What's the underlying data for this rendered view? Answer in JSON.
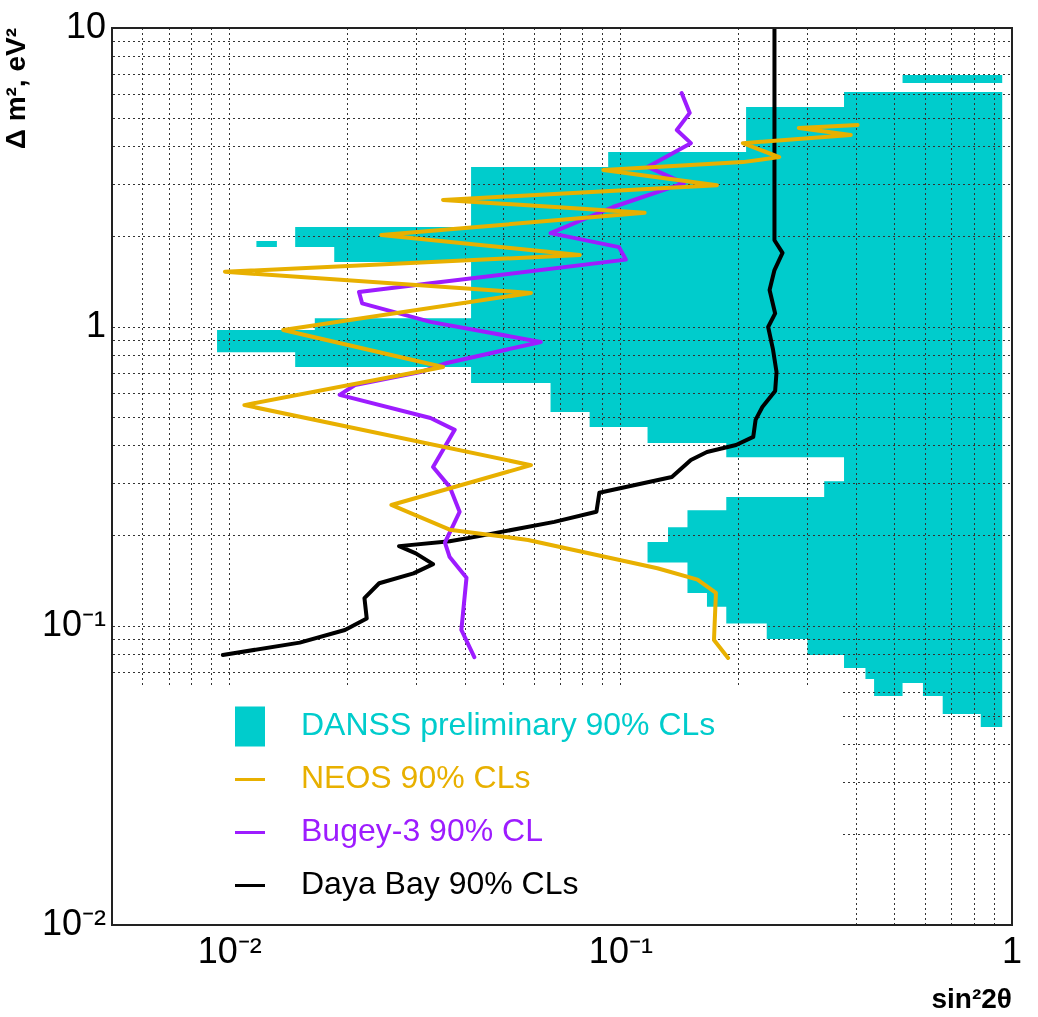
{
  "chart_data": {
    "type": "line",
    "xlabel": "sin²2θ",
    "ylabel": "Δ m², eV²",
    "log": "xy",
    "grid": true,
    "legend": "bottom left",
    "xlim": [
      0.005,
      1
    ],
    "ylim": [
      0.01,
      10
    ],
    "xticks": [
      {
        "value": 0.005,
        "label": null
      },
      {
        "value": 0.006,
        "label": null
      },
      {
        "value": 0.007,
        "label": null
      },
      {
        "value": 0.008,
        "label": null
      },
      {
        "value": 0.009,
        "label": null
      },
      {
        "value": 0.01,
        "label": "10⁻²"
      },
      {
        "value": 0.02,
        "label": null
      },
      {
        "value": 0.03,
        "label": null
      },
      {
        "value": 0.04,
        "label": null
      },
      {
        "value": 0.05,
        "label": null
      },
      {
        "value": 0.06,
        "label": null
      },
      {
        "value": 0.07,
        "label": null
      },
      {
        "value": 0.08,
        "label": null
      },
      {
        "value": 0.09,
        "label": null
      },
      {
        "value": 0.1,
        "label": "10⁻¹"
      },
      {
        "value": 0.2,
        "label": null
      },
      {
        "value": 0.3,
        "label": null
      },
      {
        "value": 0.4,
        "label": null
      },
      {
        "value": 0.5,
        "label": null
      },
      {
        "value": 0.6,
        "label": null
      },
      {
        "value": 0.7,
        "label": null
      },
      {
        "value": 0.8,
        "label": null
      },
      {
        "value": 0.9,
        "label": null
      },
      1
    ],
    "yticks": [
      {
        "value": 0.01,
        "label": "10⁻²"
      },
      {
        "value": 0.02,
        "label": null
      },
      {
        "value": 0.03,
        "label": null
      },
      {
        "value": 0.04,
        "label": null
      },
      {
        "value": 0.05,
        "label": null
      },
      {
        "value": 0.06,
        "label": null
      },
      {
        "value": 0.07,
        "label": null
      },
      {
        "value": 0.08,
        "label": null
      },
      {
        "value": 0.09,
        "label": null
      },
      {
        "value": 0.1,
        "label": "10⁻¹"
      },
      {
        "value": 0.2,
        "label": null
      },
      {
        "value": 0.3,
        "label": null
      },
      {
        "value": 0.4,
        "label": null
      },
      {
        "value": 0.5,
        "label": null
      },
      {
        "value": 0.6,
        "label": null
      },
      {
        "value": 0.7,
        "label": null
      },
      {
        "value": 0.8,
        "label": null
      },
      {
        "value": 0.9,
        "label": null
      },
      1,
      {
        "value": 2,
        "label": null
      },
      {
        "value": 3,
        "label": null
      },
      {
        "value": 4,
        "label": null
      },
      {
        "value": 5,
        "label": null
      },
      {
        "value": 6,
        "label": null
      },
      {
        "value": 7,
        "label": null
      },
      {
        "value": 8,
        "label": null
      },
      {
        "value": 9,
        "label": null
      },
      10
    ],
    "series": [
      {
        "name": "DANSS preliminary 90% CLs",
        "type": "area",
        "color": "#00cccc",
        "x": [
          0.0147,
          0.0414,
          0.0414,
          0.0928,
          0.0928,
          0.209,
          0.209,
          0.372,
          0.372,
          0.944,
          0.944,
          0.832,
          0.832,
          0.665,
          0.665,
          0.592,
          0.592,
          0.525,
          0.525,
          0.444,
          0.444,
          0.422,
          0.422,
          0.372,
          0.372,
          0.3,
          0.3,
          0.236,
          0.236,
          0.186,
          0.186,
          0.166,
          0.166,
          0.148,
          0.148,
          0.117,
          0.117,
          0.132,
          0.132,
          0.148,
          0.148,
          0.186,
          0.186,
          0.331,
          0.331,
          0.372,
          0.372,
          0.186,
          0.186,
          0.117,
          0.117,
          0.0832,
          0.0832,
          0.0661,
          0.0661,
          0.0414,
          0.0414,
          0.0147,
          0.0147,
          0.00928,
          0.00928,
          0.0165,
          0.0165,
          0.0414,
          0.0414,
          0.0185,
          0.0185,
          0.0147,
          null,
          0.0117,
          0.0132,
          0.0132,
          0.0117,
          null,
          0.525,
          0.944,
          0.944,
          0.525
        ],
        "values": [
          2.16,
          2.16,
          3.43,
          3.43,
          3.85,
          3.85,
          5.44,
          5.44,
          6.11,
          6.11,
          0.0459,
          0.0459,
          0.0508,
          0.0508,
          0.0583,
          0.0583,
          0.0645,
          0.0645,
          0.0583,
          0.0583,
          0.0665,
          0.0665,
          0.0724,
          0.0724,
          0.08,
          0.08,
          0.0905,
          0.0905,
          0.102,
          0.102,
          0.116,
          0.116,
          0.129,
          0.129,
          0.163,
          0.163,
          0.191,
          0.191,
          0.214,
          0.214,
          0.244,
          0.244,
          0.27,
          0.27,
          0.305,
          0.305,
          0.367,
          0.367,
          0.409,
          0.409,
          0.463,
          0.463,
          0.52,
          0.52,
          0.65,
          0.65,
          0.735,
          0.735,
          0.824,
          0.824,
          0.977,
          0.977,
          1.07,
          1.07,
          1.65,
          1.65,
          1.85,
          1.85,
          null,
          1.85,
          1.85,
          1.94,
          1.94,
          null,
          6.55,
          6.55,
          6.96,
          6.96
        ]
      },
      {
        "name": "NEOS 90% CLs",
        "type": "line",
        "color": "#e8b000",
        "x": [
          0.403,
          0.285,
          0.387,
          0.205,
          0.254,
          0.205,
          0.0902,
          0.176,
          0.0351,
          0.115,
          0.0244,
          0.0785,
          0.00972,
          0.0589,
          0.0137,
          0.0351,
          0.0109,
          0.0589,
          0.0259,
          0.0365,
          0.0579,
          0.124,
          0.157,
          0.175,
          0.173,
          0.188
        ],
        "values": [
          4.74,
          4.63,
          4.39,
          4.12,
          3.7,
          3.56,
          3.35,
          2.98,
          2.66,
          2.41,
          2.03,
          1.74,
          1.53,
          1.3,
          0.977,
          0.735,
          0.548,
          0.345,
          0.254,
          0.21,
          0.194,
          0.156,
          0.143,
          0.129,
          0.0898,
          0.0782
        ]
      },
      {
        "name": "Bugey-3 90% CL",
        "type": "line",
        "color": "#9d1cff",
        "x": [
          0.0422,
          0.0391,
          0.0403,
          0.0365,
          0.0355,
          0.0387,
          0.0365,
          0.0331,
          0.0376,
          0.0326,
          0.0191,
          0.0209,
          0.0307,
          0.0359,
          0.0624,
          0.0326,
          0.0218,
          0.0214,
          0.0326,
          0.103,
          0.0989,
          0.0661,
          0.0955,
          0.145,
          0.117,
          0.151,
          0.139,
          0.15,
          0.143
        ],
        "values": [
          0.0787,
          0.097,
          0.145,
          0.17,
          0.19,
          0.241,
          0.292,
          0.34,
          0.453,
          0.496,
          0.593,
          0.64,
          0.707,
          0.758,
          0.891,
          1.04,
          1.2,
          1.31,
          1.4,
          1.68,
          1.85,
          2.06,
          2.52,
          3.03,
          3.43,
          4.12,
          4.56,
          5.2,
          6.06
        ]
      },
      {
        "name": "Daya Bay 90% CLs",
        "type": "line",
        "color": "#000000",
        "x": [
          0.0096,
          0.0151,
          0.0197,
          0.0224,
          0.0221,
          0.0241,
          0.0295,
          0.0331,
          0.0299,
          0.0271,
          0.0365,
          0.0427,
          0.0676,
          0.0866,
          0.0881,
          0.135,
          0.151,
          0.166,
          0.197,
          0.218,
          0.221,
          0.23,
          0.248,
          0.25,
          0.245,
          0.238,
          0.248,
          0.24,
          0.247,
          0.259,
          0.247,
          0.247
        ],
        "values": [
          0.08,
          0.088,
          0.097,
          0.106,
          0.124,
          0.139,
          0.15,
          0.161,
          0.175,
          0.185,
          0.192,
          0.199,
          0.223,
          0.241,
          0.279,
          0.315,
          0.359,
          0.382,
          0.403,
          0.429,
          0.489,
          0.54,
          0.611,
          0.707,
          0.838,
          1,
          1.11,
          1.33,
          1.55,
          1.77,
          1.95,
          10
        ]
      }
    ]
  }
}
